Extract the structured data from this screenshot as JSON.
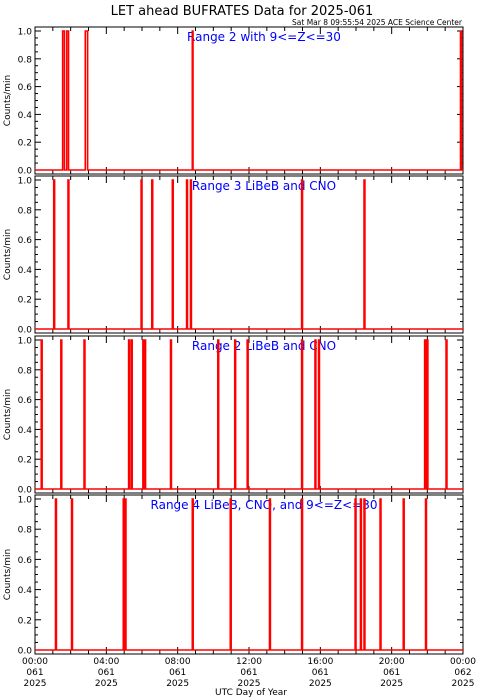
{
  "title": "LET ahead BUFRATES Data for 2025-061",
  "timestamp": "Sat Mar  8 09:55:54 2025 ACE Science Center",
  "xlabel": "UTC Day of Year",
  "colors": {
    "axis": "#000000",
    "line": "#ff0000",
    "panel_label": "#0000ff"
  },
  "chart_data": [
    {
      "type": "line",
      "title": "Range 2 with 9<=Z<=30",
      "ylabel": "Counts/min",
      "ylim": [
        0,
        1.0
      ],
      "yticks": [
        "0.0",
        "0.2",
        "0.4",
        "0.6",
        "0.8",
        "1.0"
      ],
      "xlim_hours": [
        0,
        24
      ],
      "pulses_hours": [
        [
          1.55,
          1.65
        ],
        [
          1.78,
          1.88
        ],
        [
          2.82,
          2.95
        ],
        [
          8.82,
          8.86
        ],
        [
          23.86,
          23.92
        ]
      ]
    },
    {
      "type": "line",
      "title": "Range 3 LiBeB and CNO",
      "ylabel": "Counts/min",
      "ylim": [
        0,
        1.0
      ],
      "yticks": [
        "0.0",
        "0.2",
        "0.4",
        "0.6",
        "0.8",
        "1.0"
      ],
      "xlim_hours": [
        0,
        24
      ],
      "pulses_hours": [
        [
          1.05,
          1.1
        ],
        [
          1.85,
          1.9
        ],
        [
          5.95,
          6.0
        ],
        [
          6.55,
          6.6
        ],
        [
          7.7,
          7.75
        ],
        [
          8.5,
          8.55
        ],
        [
          8.72,
          8.77
        ],
        [
          14.95,
          15.0
        ],
        [
          18.45,
          18.5
        ]
      ]
    },
    {
      "type": "line",
      "title": "Range 2 LiBeB and CNO",
      "ylabel": "Counts/min",
      "ylim": [
        0,
        1.0
      ],
      "yticks": [
        "0.0",
        "0.2",
        "0.4",
        "0.6",
        "0.8",
        "1.0"
      ],
      "xlim_hours": [
        0,
        24
      ],
      "pulses_hours": [
        [
          0.35,
          0.4
        ],
        [
          1.45,
          1.5
        ],
        [
          2.75,
          2.8
        ],
        [
          5.25,
          5.3
        ],
        [
          5.4,
          5.45
        ],
        [
          6.05,
          6.1
        ],
        [
          6.15,
          6.2
        ],
        [
          7.6,
          7.65
        ],
        [
          10.25,
          10.3
        ],
        [
          11.2,
          11.25
        ],
        [
          11.9,
          11.95
        ],
        [
          14.95,
          15.0
        ],
        [
          15.7,
          15.75
        ],
        [
          15.9,
          15.95
        ],
        [
          21.85,
          21.9
        ],
        [
          21.98,
          22.03
        ],
        [
          23.05,
          23.1
        ]
      ]
    },
    {
      "type": "line",
      "title": "Range 4 LiBeB, CNO, and 9<=Z<=30",
      "ylabel": "Counts/min",
      "ylim": [
        0,
        1.0
      ],
      "yticks": [
        "0.0",
        "0.2",
        "0.4",
        "0.6",
        "0.8",
        "1.0"
      ],
      "xlim_hours": [
        0,
        24
      ],
      "pulses_hours": [
        [
          1.15,
          1.2
        ],
        [
          2.05,
          2.1
        ],
        [
          4.95,
          5.0
        ],
        [
          5.05,
          5.1
        ],
        [
          8.82,
          8.87
        ],
        [
          10.95,
          11.0
        ],
        [
          13.15,
          13.2
        ],
        [
          14.95,
          15.0
        ],
        [
          17.95,
          18.0
        ],
        [
          18.25,
          18.3
        ],
        [
          18.45,
          18.5
        ],
        [
          19.35,
          19.4
        ],
        [
          20.65,
          20.7
        ],
        [
          21.9,
          21.95
        ]
      ]
    }
  ],
  "xticks": [
    {
      "time": "00:00",
      "day": "061",
      "year": "2025"
    },
    {
      "time": "04:00",
      "day": "061",
      "year": "2025"
    },
    {
      "time": "08:00",
      "day": "061",
      "year": "2025"
    },
    {
      "time": "12:00",
      "day": "061",
      "year": "2025"
    },
    {
      "time": "16:00",
      "day": "061",
      "year": "2025"
    },
    {
      "time": "20:00",
      "day": "061",
      "year": "2025"
    },
    {
      "time": "00:00",
      "day": "062",
      "year": "2025"
    }
  ]
}
